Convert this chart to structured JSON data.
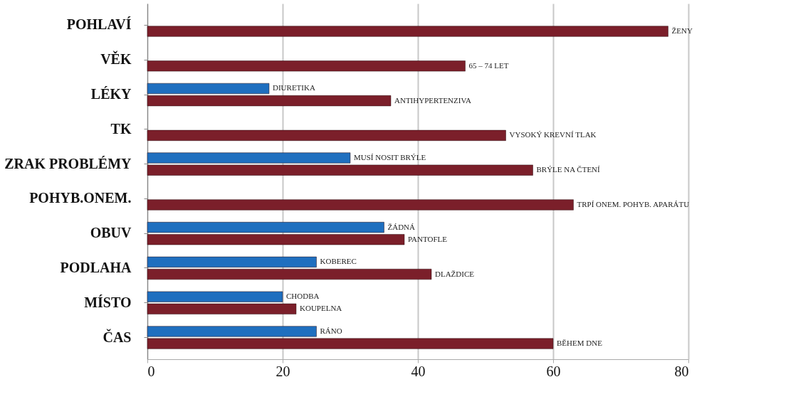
{
  "chart_data": {
    "type": "bar",
    "orientation": "horizontal",
    "categories": [
      "POHLAVÍ",
      "VĚK",
      "LÉKY",
      "TK",
      "ZRAK PROBLÉMY",
      "POHYB.ONEM.",
      "OBUV",
      "PODLAHA",
      "MÍSTO",
      "ČAS"
    ],
    "series": [
      {
        "color": "#1f6fbf",
        "values": [
          null,
          null,
          18,
          null,
          30,
          null,
          35,
          25,
          20,
          25
        ]
      },
      {
        "color": "#7b1f2a",
        "values": [
          77,
          47,
          36,
          53,
          57,
          63,
          38,
          42,
          22,
          60
        ]
      }
    ],
    "annotations": [
      {
        "text": "ŽENY",
        "x": 77,
        "y": "POHLAVÍ"
      },
      {
        "text": "65 – 74 LET",
        "x": 47,
        "y": "VĚK"
      },
      {
        "text": "DIURETIKA",
        "x": 18,
        "y": "LÉKY"
      },
      {
        "text": "ANTIHYPERTENZIVA",
        "x": 36,
        "y": "LÉKY"
      },
      {
        "text": "VYSOKÝ KREVNÍ TLAK",
        "x": 53,
        "y": "TK"
      },
      {
        "text": "MUSÍ NOSIT BRÝLE",
        "x": 30,
        "y": "ZRAK PROBLÉMY"
      },
      {
        "text": "BRÝLE NA ČTENÍ",
        "x": 57,
        "y": "ZRAK PROBLÉMY"
      },
      {
        "text": "TRPÍ ONEM. POHYB. APARÁTU",
        "x": 63,
        "y": "POHYB.ONEM."
      },
      {
        "text": "ŽÁDNÁ",
        "x": 35,
        "y": "OBUV"
      },
      {
        "text": "PANTOFLE",
        "x": 38,
        "y": "OBUV"
      },
      {
        "text": "KOBEREC",
        "x": 25,
        "y": "PODLAHA"
      },
      {
        "text": "DLAŽDICE",
        "x": 42,
        "y": "PODLAHA"
      },
      {
        "text": "CHODBA",
        "x": 20,
        "y": "MÍSTO"
      },
      {
        "text": "KOUPELNA",
        "x": 22,
        "y": "MÍSTO"
      },
      {
        "text": "RÁNO",
        "x": 25,
        "y": "ČAS"
      },
      {
        "text": "BĚHEM DNE",
        "x": 60,
        "y": "ČAS"
      }
    ],
    "xlim": [
      0,
      80
    ],
    "xticks": [
      0,
      20,
      40,
      60,
      80
    ],
    "grid": "x",
    "legend": false
  }
}
